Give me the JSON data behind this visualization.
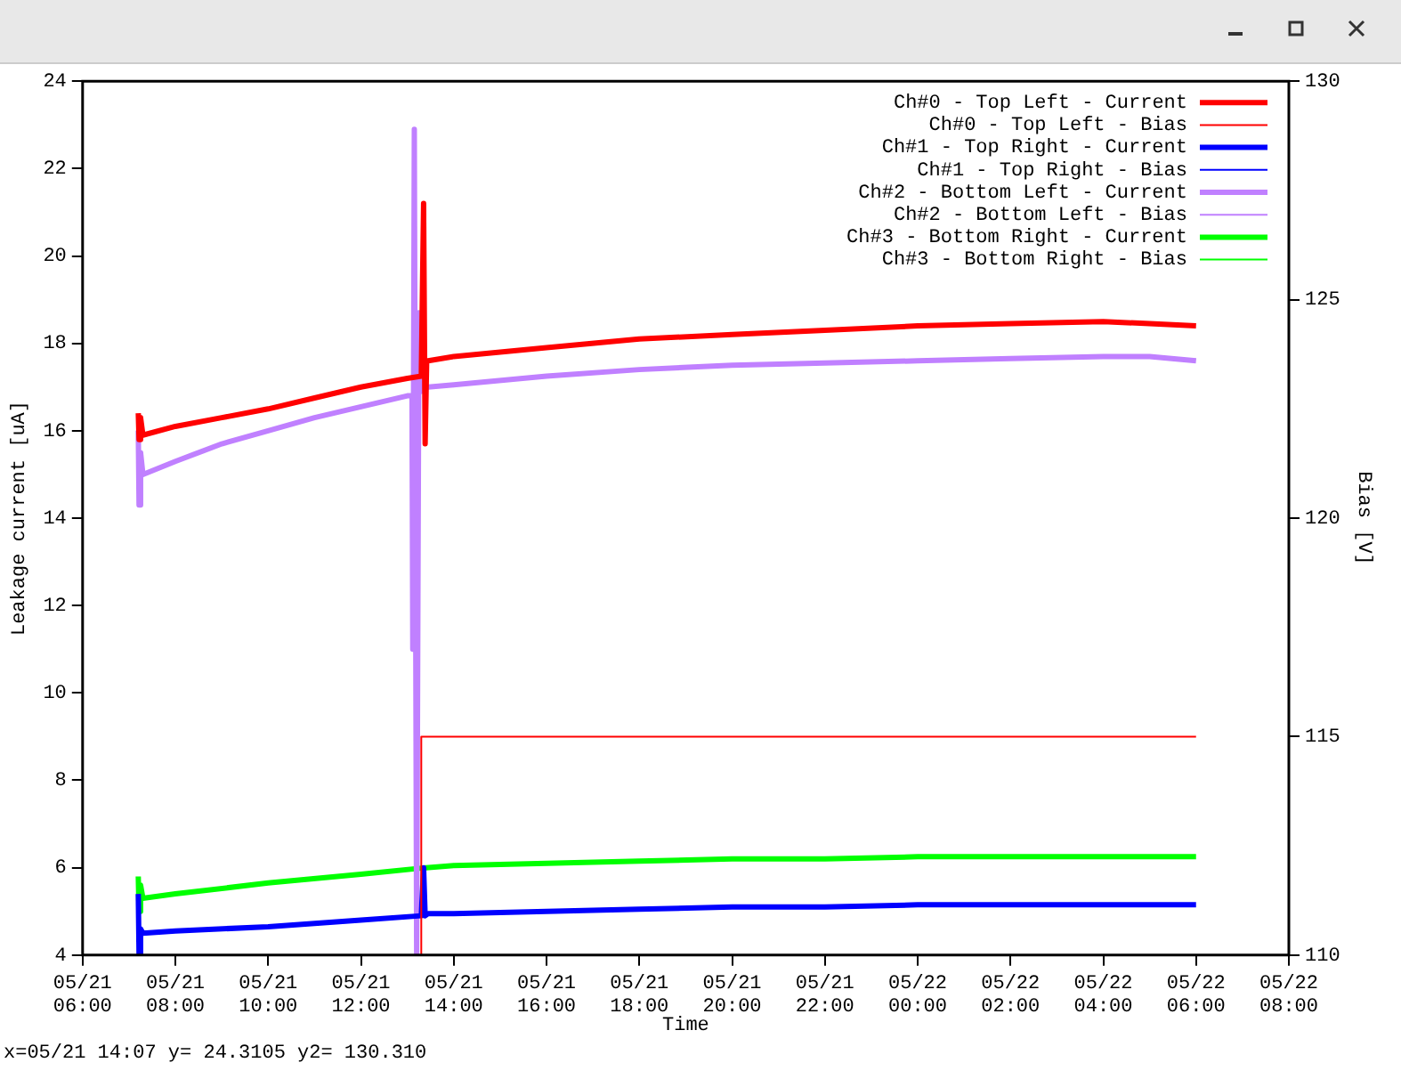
{
  "chart_data": {
    "type": "line",
    "xlabel": "Time",
    "ylabel": "Leakage current [uA]",
    "y2label": "Bias [V]",
    "xlim": [
      "--05-21T06:00",
      "--05-22T08:00"
    ],
    "xticks": [
      {
        "value": "--05-21T06:00",
        "label": "05/21\n06:00"
      },
      {
        "value": "--05-21T08:00",
        "label": "05/21\n08:00"
      },
      {
        "value": "--05-21T10:00",
        "label": "05/21\n10:00"
      },
      {
        "value": "--05-21T12:00",
        "label": "05/21\n12:00"
      },
      {
        "value": "--05-21T14:00",
        "label": "05/21\n14:00"
      },
      {
        "value": "--05-21T16:00",
        "label": "05/21\n16:00"
      },
      {
        "value": "--05-21T18:00",
        "label": "05/21\n18:00"
      },
      {
        "value": "--05-21T20:00",
        "label": "05/21\n20:00"
      },
      {
        "value": "--05-21T22:00",
        "label": "05/21\n22:00"
      },
      {
        "value": "--05-22T00:00",
        "label": "05/22\n00:00"
      },
      {
        "value": "--05-22T02:00",
        "label": "05/22\n02:00"
      },
      {
        "value": "--05-22T04:00",
        "label": "05/22\n04:00"
      },
      {
        "value": "--05-22T06:00",
        "label": "05/22\n06:00"
      },
      {
        "value": "--05-22T08:00",
        "label": "05/22\n08:00"
      }
    ],
    "ylim": [
      4,
      24
    ],
    "yticks": [
      4,
      6,
      8,
      10,
      12,
      14,
      16,
      18,
      20,
      22,
      24
    ],
    "y2lim": [
      110,
      130
    ],
    "y2ticks": [
      110,
      115,
      120,
      125,
      130
    ],
    "grid": false,
    "legend": "top right",
    "marker": "none",
    "line_style": "solid",
    "annotations": [
      "x=05/21 14:07 y= 24.3105 y2= 130.310"
    ],
    "series": [
      {
        "name": "Ch#0 - Top Left - Current",
        "color": "#ff0000",
        "x": [
          "--05-21T07:12",
          "--05-21T07:13",
          "--05-21T07:15",
          "--05-21T07:18",
          "--05-21T08:00",
          "--05-21T09:00",
          "--05-21T10:00",
          "--05-21T11:00",
          "--05-21T12:00",
          "--05-21T13:00",
          "--05-21T13:18",
          "--05-21T13:21",
          "--05-21T13:23",
          "--05-21T13:25",
          "--05-21T13:27",
          "--05-21T14:00",
          "--05-21T16:00",
          "--05-21T18:00",
          "--05-21T20:00",
          "--05-21T22:00",
          "--05-22T00:00",
          "--05-22T02:00",
          "--05-22T04:00",
          "--05-22T05:00",
          "--05-22T06:00"
        ],
        "values": [
          16.4,
          15.8,
          16.3,
          15.9,
          16.1,
          16.3,
          16.5,
          16.75,
          17.0,
          17.2,
          17.25,
          21.2,
          15.7,
          17.6,
          17.6,
          17.7,
          17.9,
          18.1,
          18.2,
          18.3,
          18.4,
          18.45,
          18.5,
          18.45,
          18.4
        ]
      },
      {
        "name": "Ch#0 - Top Left - Bias",
        "color": "#ff0000",
        "axis": "y2",
        "x": [
          "--05-21T13:18",
          "--05-21T13:18",
          "--05-22T06:00"
        ],
        "values": [
          110,
          115,
          115
        ]
      },
      {
        "name": "Ch#1 - Top Right - Current",
        "color": "#0000ff",
        "x": [
          "--05-21T07:12",
          "--05-21T07:13",
          "--05-21T07:15",
          "--05-21T07:18",
          "--05-21T08:00",
          "--05-21T10:00",
          "--05-21T12:00",
          "--05-21T13:18",
          "--05-21T13:21",
          "--05-21T13:23",
          "--05-21T13:27",
          "--05-21T14:00",
          "--05-21T16:00",
          "--05-21T18:00",
          "--05-21T20:00",
          "--05-21T22:00",
          "--05-22T00:00",
          "--05-22T02:00",
          "--05-22T04:00",
          "--05-22T06:00"
        ],
        "values": [
          5.4,
          4.0,
          4.6,
          4.5,
          4.55,
          4.65,
          4.8,
          4.9,
          6.0,
          4.9,
          4.95,
          4.95,
          5.0,
          5.05,
          5.1,
          5.1,
          5.15,
          5.15,
          5.15,
          5.15
        ]
      },
      {
        "name": "Ch#1 - Top Right - Bias",
        "color": "#0000ff",
        "axis": "y2"
      },
      {
        "name": "Ch#2 - Bottom Left - Current",
        "color": "#c080ff",
        "x": [
          "--05-21T07:12",
          "--05-21T07:13",
          "--05-21T07:15",
          "--05-21T07:18",
          "--05-21T08:00",
          "--05-21T09:00",
          "--05-21T10:00",
          "--05-21T11:00",
          "--05-21T12:00",
          "--05-21T13:00",
          "--05-21T13:06",
          "--05-21T13:07",
          "--05-21T13:09",
          "--05-21T13:12",
          "--05-21T13:15",
          "--05-21T13:18",
          "--05-21T13:27",
          "--05-21T14:00",
          "--05-21T16:00",
          "--05-21T18:00",
          "--05-21T20:00",
          "--05-21T22:00",
          "--05-22T00:00",
          "--05-22T02:00",
          "--05-22T04:00",
          "--05-22T05:00",
          "--05-22T06:00"
        ],
        "values": [
          16.0,
          14.3,
          15.5,
          15.0,
          15.3,
          15.7,
          16.0,
          16.3,
          16.55,
          16.8,
          16.8,
          11.0,
          22.9,
          4.0,
          18.7,
          16.9,
          17.0,
          17.05,
          17.25,
          17.4,
          17.5,
          17.55,
          17.6,
          17.65,
          17.7,
          17.7,
          17.6
        ]
      },
      {
        "name": "Ch#2 - Bottom Left - Bias",
        "color": "#c080ff",
        "axis": "y2"
      },
      {
        "name": "Ch#3 - Bottom Right - Current",
        "color": "#00ff00",
        "x": [
          "--05-21T07:12",
          "--05-21T07:13",
          "--05-21T07:15",
          "--05-21T07:18",
          "--05-21T08:00",
          "--05-21T10:00",
          "--05-21T12:00",
          "--05-21T13:24",
          "--05-21T14:00",
          "--05-21T16:00",
          "--05-21T18:00",
          "--05-21T20:00",
          "--05-21T22:00",
          "--05-22T00:00",
          "--05-22T02:00",
          "--05-22T04:00",
          "--05-22T06:00"
        ],
        "values": [
          5.8,
          5.0,
          5.6,
          5.3,
          5.4,
          5.65,
          5.85,
          6.0,
          6.05,
          6.1,
          6.15,
          6.2,
          6.2,
          6.25,
          6.25,
          6.25,
          6.25
        ]
      },
      {
        "name": "Ch#3 - Bottom Right - Bias",
        "color": "#00ff00",
        "axis": "y2"
      }
    ]
  }
}
